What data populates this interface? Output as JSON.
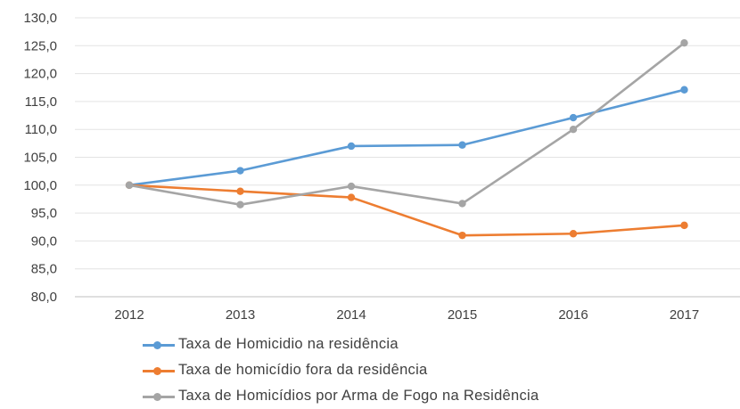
{
  "chart_data": {
    "type": "line",
    "categories": [
      "2012",
      "2013",
      "2014",
      "2015",
      "2016",
      "2017"
    ],
    "series": [
      {
        "name": "Taxa de Homicidio na residência",
        "color": "#5b9bd5",
        "values": [
          100.0,
          102.6,
          107.0,
          107.2,
          112.1,
          117.1
        ]
      },
      {
        "name": "Taxa de homicídio fora da residência",
        "color": "#ed7d31",
        "values": [
          100.0,
          98.9,
          97.8,
          91.0,
          91.3,
          92.8
        ]
      },
      {
        "name": "Taxa de Homicídios por Arma de Fogo na Residência",
        "color": "#a5a5a5",
        "values": [
          100.0,
          96.5,
          99.8,
          96.7,
          110.0,
          125.5
        ]
      }
    ],
    "y_ticks": [
      "80,0",
      "85,0",
      "90,0",
      "95,0",
      "100,0",
      "105,0",
      "110,0",
      "115,0",
      "120,0",
      "125,0",
      "130,0"
    ],
    "ylim": [
      80,
      130
    ],
    "grid": true,
    "legend_position": "bottom"
  }
}
